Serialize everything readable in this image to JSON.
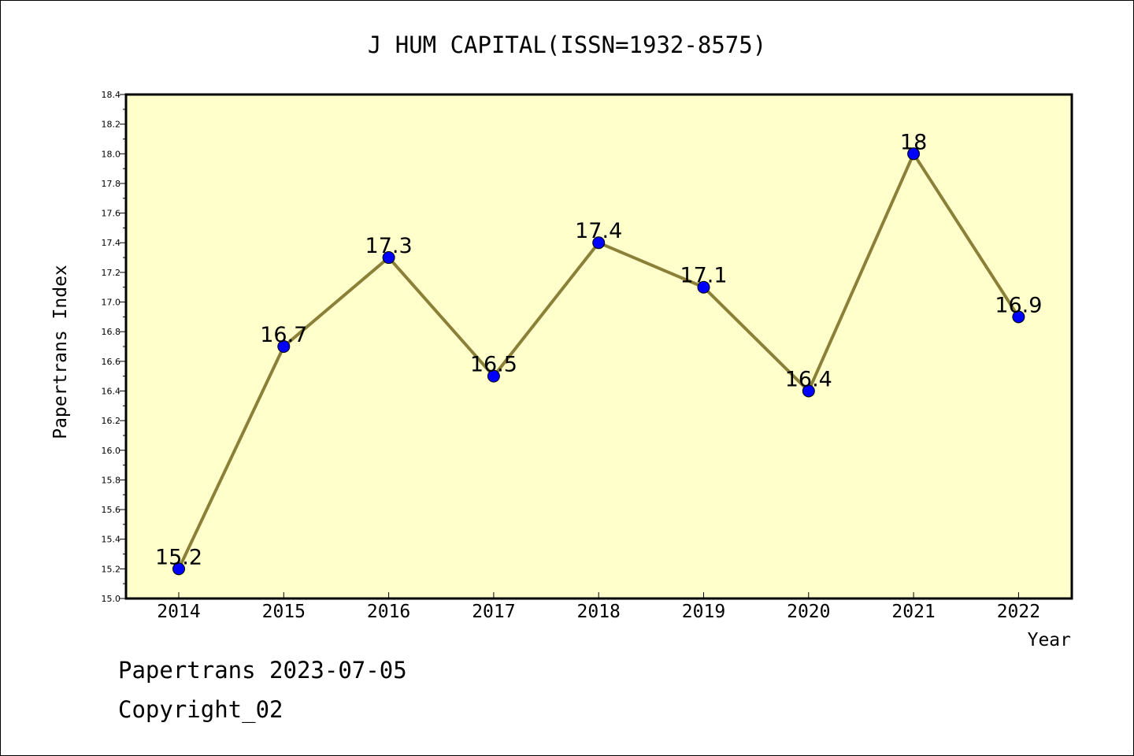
{
  "chart_data": {
    "type": "line",
    "title": "J HUM CAPITAL(ISSN=1932-8575)",
    "xlabel": "Year",
    "ylabel": "Papertrans Index",
    "x": [
      "2014",
      "2015",
      "2016",
      "2017",
      "2018",
      "2019",
      "2020",
      "2021",
      "2022"
    ],
    "series": [
      {
        "values": [
          15.2,
          16.7,
          17.3,
          16.5,
          17.4,
          17.1,
          16.4,
          18.0,
          16.9
        ],
        "labels": [
          "15.2",
          "16.7",
          "17.3",
          "16.5",
          "17.4",
          "17.1",
          "16.4",
          "18",
          "16.9"
        ]
      }
    ],
    "ylim": [
      15.0,
      18.4
    ],
    "ytick_step": 0.2,
    "grid": false,
    "colors": {
      "plot_background": "#ffffcc",
      "line": "#8b8038",
      "marker": "#0000ff"
    }
  },
  "footer": {
    "date_line": "Papertrans 2023-07-05",
    "copyright": "Copyright_02"
  }
}
